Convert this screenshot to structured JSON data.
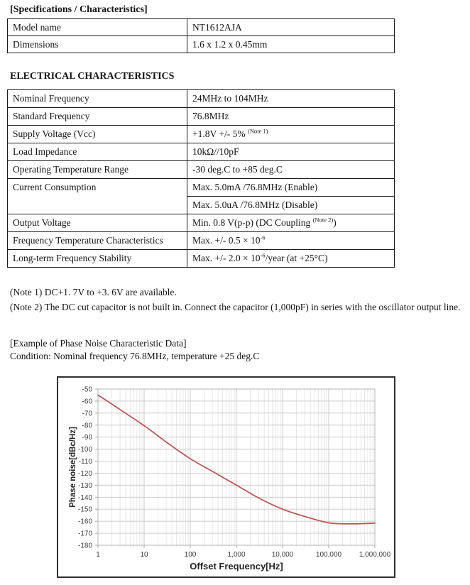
{
  "page": {
    "spec": {
      "title": "[Specifications / Characteristics]",
      "rows": [
        {
          "label": "Model name",
          "value": [
            {
              "t": "NT1612AJA"
            }
          ]
        },
        {
          "label": "Dimensions",
          "value": [
            {
              "t": "1.6 x 1.2 x 0.45mm"
            }
          ]
        }
      ]
    },
    "electrical": {
      "title": "ELECTRICAL CHARACTERISTICS",
      "rows": [
        {
          "label": "Nominal Frequency",
          "value": [
            {
              "t": "24MHz to 104MHz"
            }
          ]
        },
        {
          "label": "Standard Frequency",
          "value": [
            {
              "t": "76.8MHz"
            }
          ]
        },
        {
          "label": "Supply Voltage (Vcc)",
          "value": [
            {
              "t": "+1.8V +/- 5% "
            },
            {
              "t": "(Note 1)",
              "sup": true
            }
          ]
        },
        {
          "label": "Load Impedance",
          "value": [
            {
              "t": "10kΩ//10pF"
            }
          ]
        },
        {
          "label": "Operating Temperature Range",
          "value": [
            {
              "t": "-30 deg.C to +85 deg.C"
            }
          ]
        },
        {
          "label": "Current Consumption",
          "rowspan": 2,
          "value": [
            {
              "t": "Max. 5.0mA /76.8MHz (Enable)"
            }
          ]
        },
        {
          "label": null,
          "value": [
            {
              "t": "Max. 5.0uA /76.8MHz (Disable)"
            }
          ]
        },
        {
          "label": "Output Voltage",
          "value": [
            {
              "t": "Min. 0.8 V(p-p) (DC Coupling "
            },
            {
              "t": "(Note 2)",
              "sup": true
            },
            {
              "t": ")"
            }
          ]
        },
        {
          "label": "Frequency Temperature Characteristics",
          "value": [
            {
              "t": "Max. +/- 0.5 × 10"
            },
            {
              "t": "-6",
              "sup": true
            }
          ]
        },
        {
          "label": "Long-term Frequency Stability",
          "value": [
            {
              "t": "Max. +/- 2.0 × 10"
            },
            {
              "t": "-6",
              "sup": true
            },
            {
              "t": "/year (at +25°C)"
            }
          ]
        }
      ]
    },
    "notes": [
      "(Note 1) DC+1. 7V to +3. 6V are available.",
      "(Note 2) The DC cut capacitor is not built in. Connect the capacitor (1,000pF) in series with the oscillator output line."
    ],
    "example": {
      "title": "[Example of Phase Noise Characteristic Data]",
      "condition": "Condition: Nominal frequency 76.8MHz, temperature +25 deg.C"
    }
  },
  "chart_data": {
    "type": "line",
    "title": "",
    "xlabel": "Offset Frequency[Hz]",
    "ylabel": "Phase noise[dBc/Hz]",
    "x_scale": "log",
    "x_ticks": [
      1,
      10,
      100,
      1000,
      10000,
      100000,
      1000000
    ],
    "x_tick_labels": [
      "1",
      "10",
      "100",
      "1,000",
      "10,000",
      "100,000",
      "1,000,000"
    ],
    "y_ticks": [
      -50,
      -60,
      -70,
      -80,
      -90,
      -100,
      -110,
      -120,
      -130,
      -140,
      -150,
      -160,
      -170,
      -180
    ],
    "ylim": [
      -180,
      -50
    ],
    "grid": "major+minor",
    "legend": "none",
    "line_color": "#c0504d",
    "series": [
      {
        "name": "phase-noise",
        "points": [
          [
            1,
            -55
          ],
          [
            3,
            -67
          ],
          [
            10,
            -80.5
          ],
          [
            30,
            -94
          ],
          [
            100,
            -108
          ],
          [
            300,
            -118.5
          ],
          [
            1000,
            -130
          ],
          [
            3000,
            -140.5
          ],
          [
            10000,
            -150
          ],
          [
            30000,
            -156
          ],
          [
            100000,
            -161.3
          ],
          [
            300000,
            -162.2
          ],
          [
            1000000,
            -161.6
          ]
        ]
      }
    ]
  }
}
